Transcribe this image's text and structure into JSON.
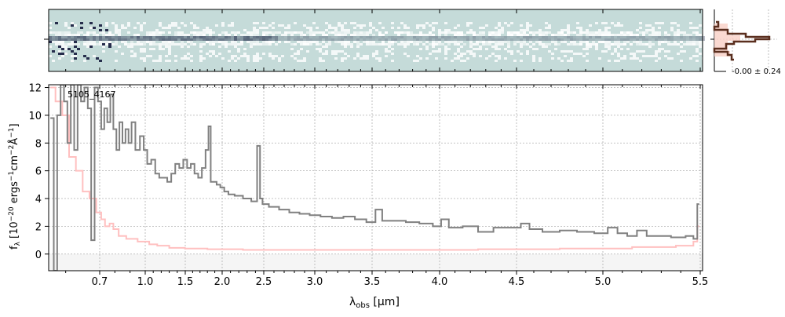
{
  "chart_data": {
    "type": "line",
    "object_label": "5105_4167",
    "xlabel": {
      "main": "λ",
      "sub": "obs",
      "unit": " [μm]"
    },
    "ylabel": {
      "pre": "f",
      "sub": "λ",
      "text": " [10",
      "exp1": "−20",
      "t2": " ergs",
      "exp2": "−1",
      "t3": "cm",
      "exp3": "−2",
      "t4": "Å",
      "exp4": "−1",
      "t5": "]"
    },
    "xlim": [
      0.55,
      5.52
    ],
    "ylim": [
      -1.2,
      12.2
    ],
    "xticks": [
      0.7,
      1.0,
      1.5,
      2.0,
      2.5,
      3.0,
      3.5,
      4.0,
      4.5,
      5.0,
      5.5
    ],
    "xtick_labels": [
      "0.7",
      "1.0",
      "1.5",
      "2.0",
      "2.5",
      "3.0",
      "3.5",
      "4.0",
      "4.5",
      "5.0",
      "5.5"
    ],
    "yticks": [
      0,
      2,
      4,
      6,
      8,
      10,
      12
    ],
    "ytick_labels": [
      "0",
      "2",
      "4",
      "6",
      "8",
      "10",
      "12"
    ],
    "grid": true,
    "series": [
      {
        "name": "flux",
        "color": "#808080",
        "points": [
          [
            0.56,
            9.8
          ],
          [
            0.57,
            -1.2
          ],
          [
            0.58,
            10
          ],
          [
            0.59,
            12.2
          ],
          [
            0.6,
            11
          ],
          [
            0.61,
            8
          ],
          [
            0.62,
            12.2
          ],
          [
            0.63,
            7.5
          ],
          [
            0.64,
            12.2
          ],
          [
            0.65,
            11
          ],
          [
            0.66,
            12
          ],
          [
            0.67,
            10.5
          ],
          [
            0.68,
            1
          ],
          [
            0.69,
            12
          ],
          [
            0.7,
            11
          ],
          [
            0.72,
            9
          ],
          [
            0.74,
            10.5
          ],
          [
            0.76,
            9.5
          ],
          [
            0.78,
            11.5
          ],
          [
            0.8,
            9
          ],
          [
            0.82,
            7.5
          ],
          [
            0.84,
            9.5
          ],
          [
            0.86,
            8
          ],
          [
            0.88,
            9
          ],
          [
            0.9,
            8
          ],
          [
            0.92,
            9.5
          ],
          [
            0.95,
            7.5
          ],
          [
            0.98,
            8.5
          ],
          [
            1.0,
            7.5
          ],
          [
            1.05,
            6.5
          ],
          [
            1.1,
            6.8
          ],
          [
            1.15,
            5.8
          ],
          [
            1.2,
            5.5
          ],
          [
            1.25,
            5.5
          ],
          [
            1.3,
            5.2
          ],
          [
            1.35,
            5.8
          ],
          [
            1.4,
            6.5
          ],
          [
            1.45,
            6.2
          ],
          [
            1.5,
            6.8
          ],
          [
            1.55,
            6.2
          ],
          [
            1.6,
            6.5
          ],
          [
            1.65,
            5.8
          ],
          [
            1.7,
            5.5
          ],
          [
            1.75,
            6.2
          ],
          [
            1.8,
            7.5
          ],
          [
            1.83,
            9.2
          ],
          [
            1.86,
            5.2
          ],
          [
            1.9,
            5.2
          ],
          [
            1.95,
            5.0
          ],
          [
            2.0,
            4.8
          ],
          [
            2.05,
            4.5
          ],
          [
            2.1,
            4.3
          ],
          [
            2.2,
            4.2
          ],
          [
            2.3,
            4.0
          ],
          [
            2.4,
            3.8
          ],
          [
            2.44,
            7.8
          ],
          [
            2.47,
            4.0
          ],
          [
            2.5,
            3.6
          ],
          [
            2.6,
            3.4
          ],
          [
            2.7,
            3.2
          ],
          [
            2.8,
            3.0
          ],
          [
            2.9,
            2.9
          ],
          [
            3.0,
            2.8
          ],
          [
            3.1,
            2.7
          ],
          [
            3.2,
            2.6
          ],
          [
            3.3,
            2.7
          ],
          [
            3.4,
            2.5
          ],
          [
            3.5,
            2.3
          ],
          [
            3.55,
            3.2
          ],
          [
            3.6,
            2.4
          ],
          [
            3.7,
            2.4
          ],
          [
            3.8,
            2.3
          ],
          [
            3.9,
            2.2
          ],
          [
            4.0,
            2.0
          ],
          [
            4.02,
            2.5
          ],
          [
            4.1,
            1.9
          ],
          [
            4.2,
            2.0
          ],
          [
            4.3,
            1.6
          ],
          [
            4.4,
            1.9
          ],
          [
            4.5,
            1.9
          ],
          [
            4.55,
            2.2
          ],
          [
            4.6,
            1.8
          ],
          [
            4.7,
            1.6
          ],
          [
            4.8,
            1.7
          ],
          [
            4.9,
            1.6
          ],
          [
            5.0,
            1.5
          ],
          [
            5.05,
            1.9
          ],
          [
            5.1,
            1.5
          ],
          [
            5.15,
            1.3
          ],
          [
            5.2,
            1.7
          ],
          [
            5.25,
            1.3
          ],
          [
            5.3,
            1.3
          ],
          [
            5.4,
            1.2
          ],
          [
            5.45,
            1.3
          ],
          [
            5.48,
            1.1
          ],
          [
            5.49,
            3.6
          ]
        ]
      },
      {
        "name": "error",
        "color": "#ffc0c0",
        "points": [
          [
            0.56,
            12
          ],
          [
            0.58,
            11
          ],
          [
            0.6,
            10
          ],
          [
            0.62,
            7
          ],
          [
            0.64,
            6
          ],
          [
            0.66,
            4.5
          ],
          [
            0.68,
            4
          ],
          [
            0.7,
            3
          ],
          [
            0.72,
            2.5
          ],
          [
            0.75,
            2
          ],
          [
            0.78,
            2.2
          ],
          [
            0.8,
            1.8
          ],
          [
            0.85,
            1.3
          ],
          [
            0.9,
            1.1
          ],
          [
            1.0,
            0.9
          ],
          [
            1.1,
            0.7
          ],
          [
            1.2,
            0.6
          ],
          [
            1.4,
            0.45
          ],
          [
            1.6,
            0.4
          ],
          [
            2.0,
            0.35
          ],
          [
            2.5,
            0.3
          ],
          [
            3.0,
            0.3
          ],
          [
            3.5,
            0.3
          ],
          [
            4.0,
            0.3
          ],
          [
            4.5,
            0.35
          ],
          [
            5.0,
            0.4
          ],
          [
            5.3,
            0.5
          ],
          [
            5.45,
            0.6
          ],
          [
            5.48,
            0.9
          ],
          [
            5.49,
            2.0
          ]
        ]
      }
    ],
    "profile_panel": {
      "stat_label": "-0.00 ± 0.24"
    }
  }
}
